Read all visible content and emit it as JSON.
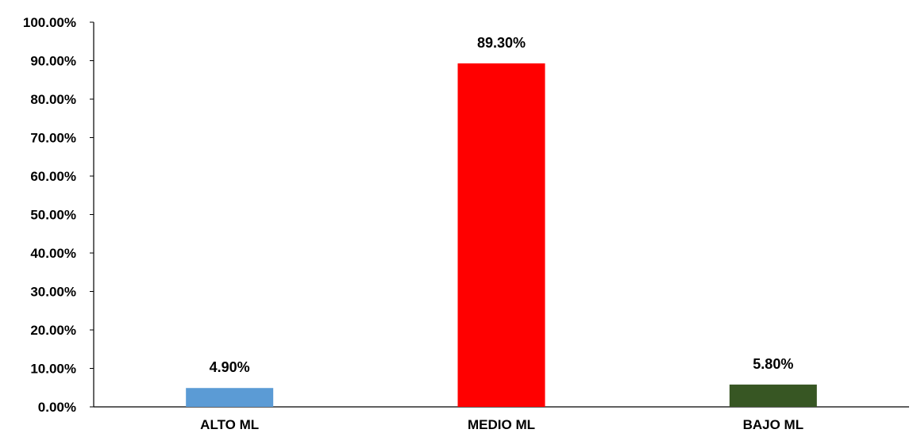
{
  "chart_data": {
    "type": "bar",
    "categories": [
      "ALTO ML",
      "MEDIO ML",
      "BAJO ML"
    ],
    "values": [
      4.9,
      89.3,
      5.8
    ],
    "data_labels": [
      "4.90%",
      "89.30%",
      "5.80%"
    ],
    "colors": [
      "#5B9BD5",
      "#FF0000",
      "#375623"
    ],
    "ylim": [
      0,
      100
    ],
    "yticks": [
      0,
      10,
      20,
      30,
      40,
      50,
      60,
      70,
      80,
      90,
      100
    ],
    "ytick_labels": [
      "0.00%",
      "10.00%",
      "20.00%",
      "30.00%",
      "40.00%",
      "50.00%",
      "60.00%",
      "70.00%",
      "80.00%",
      "90.00%",
      "100.00%"
    ],
    "title": "",
    "xlabel": "",
    "ylabel": "",
    "grid": false,
    "legend": "none"
  }
}
